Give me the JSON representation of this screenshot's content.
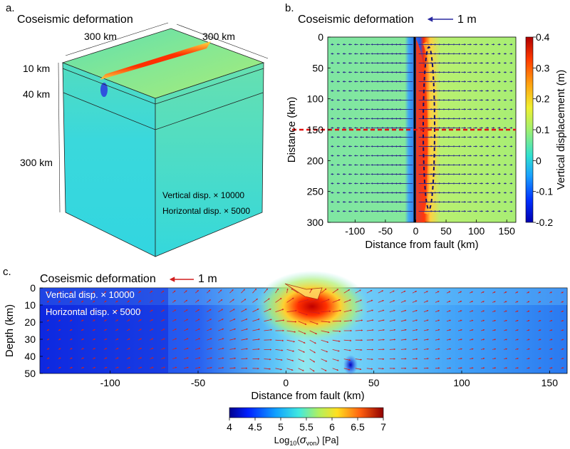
{
  "figure": {
    "panel_a": {
      "letter": "a.",
      "title": "Coseismic deformation",
      "dims": {
        "top_x": "300 km",
        "top_y": "300 km",
        "layer1": "10 km",
        "layer2": "40 km",
        "layer3": "300 km"
      },
      "annot_vertical": "Vertical disp. × 10000",
      "annot_horizontal": "Horizontal disp. × 5000"
    },
    "panel_b": {
      "letter": "b.",
      "title": "Coseismic deformation",
      "scale_label": "1 m",
      "xlabel": "Distance from fault (km)",
      "ylabel": "Distance (km)",
      "xticks": [
        "-100",
        "-50",
        "0",
        "50",
        "100",
        "150"
      ],
      "yticks": [
        "0",
        "50",
        "100",
        "150",
        "200",
        "250",
        "300"
      ],
      "colorbar_label": "Vertical displacement (m)",
      "colorbar_ticks": [
        "0.4",
        "0.3",
        "0.2",
        "0.1",
        "0",
        "-0.1",
        "-0.2"
      ]
    },
    "panel_c": {
      "letter": "c.",
      "title": "Coseismic deformation",
      "scale_label": "1 m",
      "annot_vertical": "Vertical disp.  × 10000",
      "annot_horizontal": "Horizontal disp. × 5000",
      "xlabel": "Distance from fault (km)",
      "ylabel": "Depth (km)",
      "xticks": [
        "-100",
        "-50",
        "0",
        "50",
        "100",
        "150"
      ],
      "yticks": [
        "0",
        "10",
        "20",
        "30",
        "40",
        "50"
      ],
      "colorbar_ticks": [
        "4",
        "4.5",
        "5",
        "5.5",
        "6",
        "6.5",
        "7"
      ],
      "colorbar_label_prefix": "Log",
      "colorbar_label_sub": "10",
      "colorbar_label_sigma": "σ",
      "colorbar_label_sigsub": "von",
      "colorbar_label_unit": "[Pa]"
    }
  },
  "chart_data": [
    {
      "type": "heatmap",
      "title": "Coseismic deformation",
      "xlabel": "Distance from fault (km)",
      "ylabel": "Distance (km)",
      "xlim": [
        -145,
        165
      ],
      "ylim": [
        300,
        0
      ],
      "colorbar": {
        "label": "Vertical displacement (m)",
        "range": [
          -0.2,
          0.4
        ]
      },
      "fault_x": 0,
      "profile_line_y": 150,
      "vector_scale_m": 1
    },
    {
      "type": "heatmap",
      "title": "Coseismic deformation",
      "xlabel": "Distance from fault (km)",
      "ylabel": "Depth (km)",
      "xlim": [
        -140,
        160
      ],
      "ylim": [
        50,
        0
      ],
      "colorbar": {
        "label": "Log10(σvon) [Pa]",
        "range": [
          4,
          7
        ]
      },
      "vector_scale_m": 1
    }
  ],
  "colors": {
    "arrow_b": "#2a2a8a",
    "arrow_c": "#d21f1f",
    "profile_line": "#e01010",
    "fault": "#000000"
  }
}
